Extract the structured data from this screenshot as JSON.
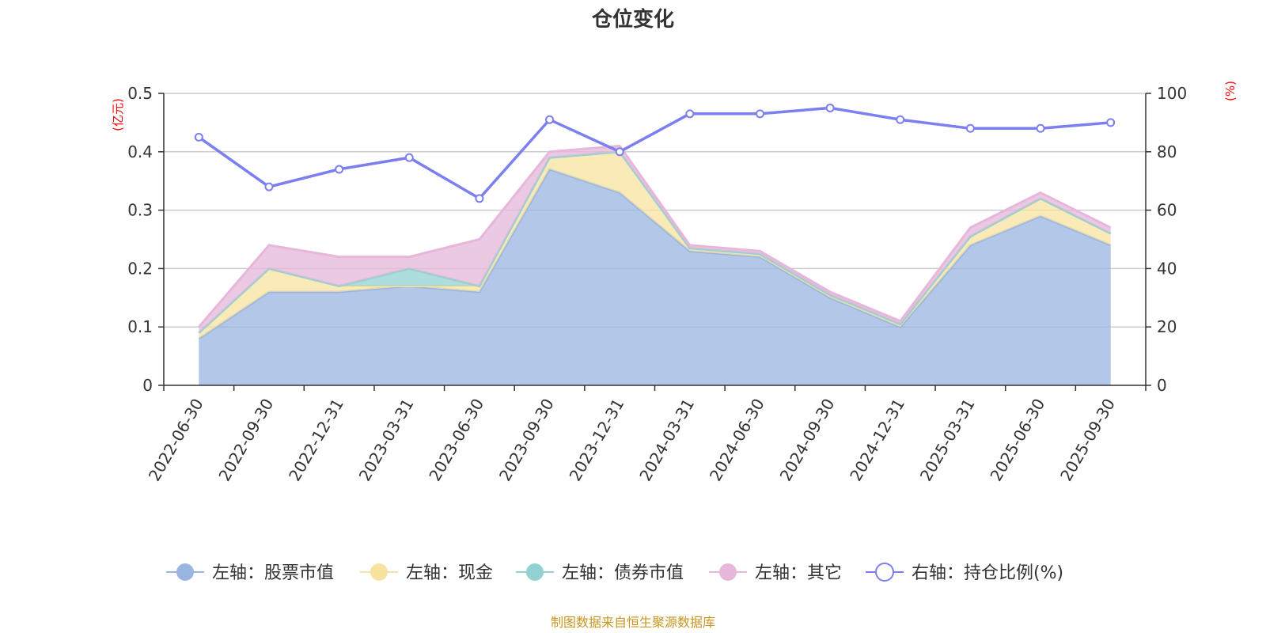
{
  "chart_data": {
    "type": "area",
    "title": "仓位变化",
    "left_unit": "(亿元)",
    "right_unit": "(%)",
    "categories": [
      "2022-06-30",
      "2022-09-30",
      "2022-12-31",
      "2023-03-31",
      "2023-06-30",
      "2023-09-30",
      "2023-12-31",
      "2024-03-31",
      "2024-06-30",
      "2024-09-30",
      "2024-12-31",
      "2025-03-31",
      "2025-06-30",
      "2025-09-30"
    ],
    "left_ylim": [
      0,
      0.5
    ],
    "left_ticks": [
      "0",
      "0.1",
      "0.2",
      "0.3",
      "0.4",
      "0.5"
    ],
    "right_ylim": [
      0,
      100
    ],
    "right_ticks": [
      "0",
      "20",
      "40",
      "60",
      "80",
      "100"
    ],
    "series": [
      {
        "name": "左轴：股票市值",
        "axis": "left",
        "stack": true,
        "color": "#9ab5e0",
        "values": [
          0.08,
          0.16,
          0.16,
          0.17,
          0.16,
          0.37,
          0.33,
          0.23,
          0.22,
          0.15,
          0.1,
          0.24,
          0.29,
          0.24
        ]
      },
      {
        "name": "左轴：现金",
        "axis": "left",
        "stack": true,
        "color": "#f7e3a0",
        "values": [
          0.01,
          0.04,
          0.01,
          0.0,
          0.01,
          0.02,
          0.07,
          0.005,
          0.005,
          0.005,
          0.005,
          0.015,
          0.03,
          0.02
        ]
      },
      {
        "name": "左轴：债券市值",
        "axis": "left",
        "stack": true,
        "color": "#92d2d2",
        "values": [
          0.0,
          0.0,
          0.0,
          0.03,
          0.0,
          0.0,
          0.0,
          0.0,
          0.0,
          0.0,
          0.0,
          0.0,
          0.0,
          0.0
        ]
      },
      {
        "name": "左轴：其它",
        "axis": "left",
        "stack": true,
        "color": "#e6b7da",
        "values": [
          0.01,
          0.04,
          0.05,
          0.02,
          0.08,
          0.01,
          0.01,
          0.005,
          0.005,
          0.005,
          0.005,
          0.015,
          0.01,
          0.01
        ]
      },
      {
        "name": "右轴：持仓比例(%)",
        "axis": "right",
        "stack": false,
        "color": "#7b7ff0",
        "values": [
          85,
          68,
          74,
          78,
          64,
          91,
          80,
          93,
          93,
          95,
          91,
          88,
          88,
          90
        ]
      }
    ],
    "source": "制图数据来自恒生聚源数据库"
  }
}
